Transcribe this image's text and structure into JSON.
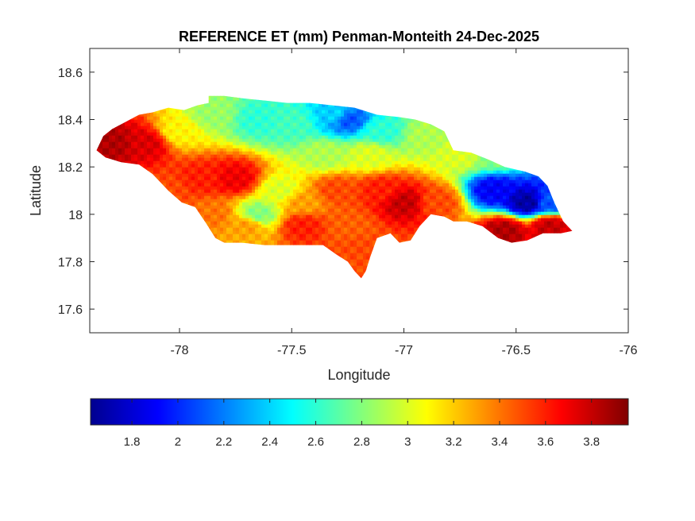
{
  "chart_data": {
    "type": "heatmap",
    "title": "REFERENCE ET (mm) Penman-Monteith 24-Dec-2025",
    "xlabel": "Longitude",
    "ylabel": "Latitude",
    "xlim": [
      -78.4,
      -76
    ],
    "ylim": [
      17.5,
      18.7
    ],
    "x_ticks": [
      -78,
      -77.5,
      -77,
      -76.5,
      -76
    ],
    "y_ticks": [
      17.6,
      17.8,
      18,
      18.2,
      18.4,
      18.6
    ],
    "x_tick_labels": [
      "-78",
      "-77.5",
      "-77",
      "-76.5",
      "-76"
    ],
    "y_tick_labels": [
      "17.6",
      "17.8",
      "18",
      "18.2",
      "18.4",
      "18.6"
    ],
    "colormap": "jet",
    "colorbar": {
      "position": "bottom",
      "range": [
        1.62,
        3.96
      ],
      "ticks": [
        1.8,
        2,
        2.2,
        2.4,
        2.6,
        2.8,
        3,
        3.2,
        3.4,
        3.6,
        3.8
      ],
      "tick_labels": [
        "1.8",
        "2",
        "2.2",
        "2.4",
        "2.6",
        "2.8",
        "3",
        "3.2",
        "3.4",
        "3.6",
        "3.8"
      ]
    },
    "region": "Jamaica",
    "grid": false,
    "field_samples": [
      {
        "lon": -78.3,
        "lat": 18.3,
        "value": 3.85
      },
      {
        "lon": -78.15,
        "lat": 18.3,
        "value": 3.75
      },
      {
        "lon": -78.0,
        "lat": 18.35,
        "value": 3.1
      },
      {
        "lon": -77.85,
        "lat": 18.42,
        "value": 2.85
      },
      {
        "lon": -77.65,
        "lat": 18.4,
        "value": 2.6
      },
      {
        "lon": -77.5,
        "lat": 18.38,
        "value": 2.65
      },
      {
        "lon": -77.3,
        "lat": 18.42,
        "value": 2.4
      },
      {
        "lon": -77.25,
        "lat": 18.4,
        "value": 2.1
      },
      {
        "lon": -77.1,
        "lat": 18.35,
        "value": 2.6
      },
      {
        "lon": -76.9,
        "lat": 18.33,
        "value": 2.9
      },
      {
        "lon": -76.75,
        "lat": 18.25,
        "value": 3.0
      },
      {
        "lon": -76.6,
        "lat": 18.1,
        "value": 1.9
      },
      {
        "lon": -76.45,
        "lat": 18.05,
        "value": 1.7
      },
      {
        "lon": -76.35,
        "lat": 18.05,
        "value": 2.1
      },
      {
        "lon": -76.55,
        "lat": 17.93,
        "value": 3.85
      },
      {
        "lon": -76.35,
        "lat": 17.95,
        "value": 3.8
      },
      {
        "lon": -76.85,
        "lat": 18.05,
        "value": 3.5
      },
      {
        "lon": -77.0,
        "lat": 18.05,
        "value": 3.8
      },
      {
        "lon": -77.1,
        "lat": 18.1,
        "value": 3.6
      },
      {
        "lon": -77.3,
        "lat": 18.1,
        "value": 3.5
      },
      {
        "lon": -77.25,
        "lat": 17.95,
        "value": 3.45
      },
      {
        "lon": -77.2,
        "lat": 17.85,
        "value": 3.5
      },
      {
        "lon": -77.45,
        "lat": 18.05,
        "value": 3.3
      },
      {
        "lon": -77.55,
        "lat": 18.1,
        "value": 3.0
      },
      {
        "lon": -77.65,
        "lat": 18.0,
        "value": 2.8
      },
      {
        "lon": -77.75,
        "lat": 18.15,
        "value": 3.7
      },
      {
        "lon": -77.9,
        "lat": 18.15,
        "value": 3.6
      },
      {
        "lon": -78.05,
        "lat": 18.1,
        "value": 3.5
      },
      {
        "lon": -77.85,
        "lat": 18.0,
        "value": 3.4
      },
      {
        "lon": -77.7,
        "lat": 17.95,
        "value": 3.3
      },
      {
        "lon": -77.45,
        "lat": 17.95,
        "value": 3.6
      },
      {
        "lon": -77.35,
        "lat": 18.25,
        "value": 2.9
      },
      {
        "lon": -77.15,
        "lat": 18.25,
        "value": 3.0
      },
      {
        "lon": -76.6,
        "lat": 18.25,
        "value": 2.8
      }
    ]
  }
}
